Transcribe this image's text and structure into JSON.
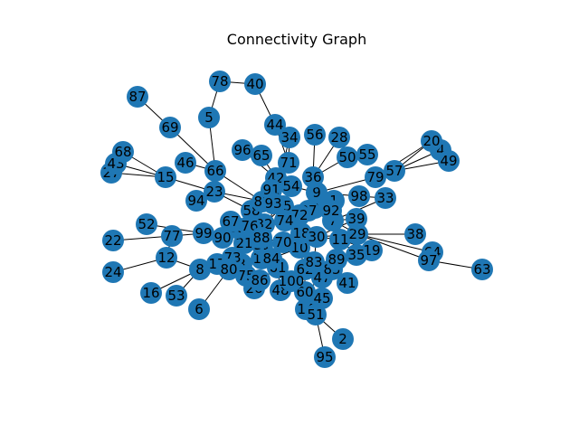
{
  "title": "Connectivity Graph",
  "colors": {
    "node": "#1f77b4",
    "edge": "#000000",
    "label": "#000000",
    "background": "#ffffff"
  },
  "nodes": [
    {
      "id": "0",
      "label": "0"
    },
    {
      "id": "1",
      "label": "1"
    },
    {
      "id": "2",
      "label": "2"
    },
    {
      "id": "3",
      "label": "3"
    },
    {
      "id": "4",
      "label": "4"
    },
    {
      "id": "5",
      "label": "5"
    },
    {
      "id": "6",
      "label": "6"
    },
    {
      "id": "7",
      "label": "7"
    },
    {
      "id": "8",
      "label": "8"
    },
    {
      "id": "9",
      "label": "9"
    },
    {
      "id": "10",
      "label": "10"
    },
    {
      "id": "11",
      "label": "11"
    },
    {
      "id": "12",
      "label": "12"
    },
    {
      "id": "13",
      "label": "13"
    },
    {
      "id": "14",
      "label": "14"
    },
    {
      "id": "15",
      "label": "15"
    },
    {
      "id": "16",
      "label": "16"
    },
    {
      "id": "17",
      "label": "17"
    },
    {
      "id": "18",
      "label": "18"
    },
    {
      "id": "19",
      "label": "19"
    },
    {
      "id": "20",
      "label": "20"
    },
    {
      "id": "21",
      "label": "21"
    },
    {
      "id": "22",
      "label": "22"
    },
    {
      "id": "23",
      "label": "23"
    },
    {
      "id": "24",
      "label": "24"
    },
    {
      "id": "25",
      "label": "25"
    },
    {
      "id": "26",
      "label": "26"
    },
    {
      "id": "27",
      "label": "27"
    },
    {
      "id": "28",
      "label": "28"
    },
    {
      "id": "29",
      "label": "29"
    },
    {
      "id": "30",
      "label": "30"
    },
    {
      "id": "31",
      "label": "31"
    },
    {
      "id": "32",
      "label": "32"
    },
    {
      "id": "33",
      "label": "33"
    },
    {
      "id": "34",
      "label": "34"
    },
    {
      "id": "35",
      "label": "35"
    },
    {
      "id": "36",
      "label": "36"
    },
    {
      "id": "37",
      "label": "37"
    },
    {
      "id": "38",
      "label": "38"
    },
    {
      "id": "39",
      "label": "39"
    },
    {
      "id": "40",
      "label": "40"
    },
    {
      "id": "41",
      "label": "41"
    },
    {
      "id": "42",
      "label": "42"
    },
    {
      "id": "43",
      "label": "43"
    },
    {
      "id": "44",
      "label": "44"
    },
    {
      "id": "45",
      "label": "45"
    },
    {
      "id": "46",
      "label": "46"
    },
    {
      "id": "47",
      "label": "47"
    },
    {
      "id": "48",
      "label": "48"
    },
    {
      "id": "49",
      "label": "49"
    },
    {
      "id": "50",
      "label": "50"
    },
    {
      "id": "51",
      "label": "51"
    },
    {
      "id": "52",
      "label": "52"
    },
    {
      "id": "53",
      "label": "53"
    },
    {
      "id": "54",
      "label": "54"
    },
    {
      "id": "55",
      "label": "55"
    },
    {
      "id": "56",
      "label": "56"
    },
    {
      "id": "57",
      "label": "57"
    },
    {
      "id": "58",
      "label": "58"
    },
    {
      "id": "59",
      "label": "59"
    },
    {
      "id": "60",
      "label": "60"
    },
    {
      "id": "61",
      "label": "61"
    },
    {
      "id": "62",
      "label": "62"
    },
    {
      "id": "63",
      "label": "63"
    },
    {
      "id": "64",
      "label": "64"
    },
    {
      "id": "65",
      "label": "65"
    },
    {
      "id": "66",
      "label": "66"
    },
    {
      "id": "67",
      "label": "67"
    },
    {
      "id": "68",
      "label": "68"
    },
    {
      "id": "69",
      "label": "69"
    },
    {
      "id": "70",
      "label": "70"
    },
    {
      "id": "71",
      "label": "71"
    },
    {
      "id": "72",
      "label": "72"
    },
    {
      "id": "73",
      "label": "73"
    },
    {
      "id": "74",
      "label": "74"
    },
    {
      "id": "75",
      "label": "75"
    },
    {
      "id": "76",
      "label": "76"
    },
    {
      "id": "77",
      "label": "77"
    },
    {
      "id": "78",
      "label": "78"
    },
    {
      "id": "79",
      "label": "79"
    },
    {
      "id": "80",
      "label": "80"
    },
    {
      "id": "81",
      "label": "81"
    },
    {
      "id": "82",
      "label": "82"
    },
    {
      "id": "83",
      "label": "83"
    },
    {
      "id": "84",
      "label": "84"
    },
    {
      "id": "85",
      "label": "85"
    },
    {
      "id": "86",
      "label": "86"
    },
    {
      "id": "87",
      "label": "87"
    },
    {
      "id": "88",
      "label": "88"
    },
    {
      "id": "89",
      "label": "89"
    },
    {
      "id": "90",
      "label": "90"
    },
    {
      "id": "91",
      "label": "91"
    },
    {
      "id": "92",
      "label": "92"
    },
    {
      "id": "93",
      "label": "93"
    },
    {
      "id": "94",
      "label": "94"
    },
    {
      "id": "95",
      "label": "95"
    },
    {
      "id": "96",
      "label": "96"
    },
    {
      "id": "97",
      "label": "97"
    },
    {
      "id": "98",
      "label": "98"
    },
    {
      "id": "99",
      "label": "99"
    },
    {
      "id": "100",
      "label": "100"
    }
  ],
  "edges": [
    [
      "87",
      "69"
    ],
    [
      "69",
      "66"
    ],
    [
      "78",
      "40"
    ],
    [
      "78",
      "5"
    ],
    [
      "5",
      "66"
    ],
    [
      "40",
      "44"
    ],
    [
      "44",
      "34"
    ],
    [
      "44",
      "71"
    ],
    [
      "68",
      "15"
    ],
    [
      "43",
      "15"
    ],
    [
      "27",
      "15"
    ],
    [
      "15",
      "23"
    ],
    [
      "46",
      "66"
    ],
    [
      "66",
      "23"
    ],
    [
      "66",
      "82"
    ],
    [
      "94",
      "23"
    ],
    [
      "23",
      "58"
    ],
    [
      "96",
      "42"
    ],
    [
      "65",
      "42"
    ],
    [
      "71",
      "42"
    ],
    [
      "34",
      "71"
    ],
    [
      "56",
      "36"
    ],
    [
      "28",
      "36"
    ],
    [
      "50",
      "36"
    ],
    [
      "55",
      "50"
    ],
    [
      "42",
      "54"
    ],
    [
      "54",
      "9"
    ],
    [
      "36",
      "9"
    ],
    [
      "79",
      "9"
    ],
    [
      "57",
      "79"
    ],
    [
      "20",
      "57"
    ],
    [
      "4",
      "57"
    ],
    [
      "49",
      "57"
    ],
    [
      "20",
      "79"
    ],
    [
      "98",
      "9"
    ],
    [
      "33",
      "98"
    ],
    [
      "1",
      "7"
    ],
    [
      "9",
      "1"
    ],
    [
      "39",
      "7"
    ],
    [
      "38",
      "29"
    ],
    [
      "64",
      "29"
    ],
    [
      "97",
      "29"
    ],
    [
      "63",
      "97"
    ],
    [
      "64",
      "97"
    ],
    [
      "19",
      "11"
    ],
    [
      "29",
      "11"
    ],
    [
      "35",
      "11"
    ],
    [
      "52",
      "99"
    ],
    [
      "22",
      "77"
    ],
    [
      "77",
      "99"
    ],
    [
      "77",
      "12"
    ],
    [
      "99",
      "90"
    ],
    [
      "24",
      "12"
    ],
    [
      "12",
      "8"
    ],
    [
      "16",
      "8"
    ],
    [
      "53",
      "8"
    ],
    [
      "8",
      "17"
    ],
    [
      "6",
      "80"
    ],
    [
      "17",
      "21"
    ],
    [
      "80",
      "73"
    ],
    [
      "73",
      "75"
    ],
    [
      "75",
      "26"
    ],
    [
      "86",
      "3"
    ],
    [
      "48",
      "61"
    ],
    [
      "100",
      "61"
    ],
    [
      "60",
      "47"
    ],
    [
      "14",
      "45"
    ],
    [
      "45",
      "51"
    ],
    [
      "51",
      "2"
    ],
    [
      "51",
      "95"
    ],
    [
      "41",
      "85"
    ],
    [
      "83",
      "85"
    ],
    [
      "89",
      "85"
    ],
    [
      "47",
      "62"
    ],
    [
      "62",
      "10"
    ],
    [
      "84",
      "10"
    ],
    [
      "13",
      "70"
    ],
    [
      "31",
      "70"
    ],
    [
      "88",
      "70"
    ],
    [
      "70",
      "18"
    ],
    [
      "18",
      "30"
    ],
    [
      "30",
      "11"
    ],
    [
      "21",
      "88"
    ],
    [
      "90",
      "88"
    ],
    [
      "67",
      "32"
    ],
    [
      "59",
      "76"
    ],
    [
      "76",
      "32"
    ],
    [
      "32",
      "25"
    ],
    [
      "25",
      "74"
    ],
    [
      "74",
      "72"
    ],
    [
      "72",
      "37"
    ],
    [
      "37",
      "92"
    ],
    [
      "92",
      "1"
    ],
    [
      "82",
      "93"
    ],
    [
      "93",
      "91"
    ],
    [
      "91",
      "42"
    ],
    [
      "58",
      "25"
    ],
    [
      "18",
      "74"
    ],
    [
      "10",
      "83"
    ],
    [
      "30",
      "39"
    ],
    [
      "0",
      "36"
    ],
    [
      "92",
      "7"
    ],
    [
      "72",
      "18"
    ],
    [
      "37",
      "9"
    ],
    [
      "29",
      "7"
    ],
    [
      "3",
      "13"
    ],
    [
      "13",
      "34"
    ],
    [
      "61",
      "84"
    ],
    [
      "84",
      "13"
    ],
    [
      "83",
      "30"
    ],
    [
      "10",
      "30"
    ],
    [
      "70",
      "10"
    ],
    [
      "26",
      "3"
    ],
    [
      "86",
      "61"
    ],
    [
      "100",
      "62"
    ],
    [
      "47",
      "89"
    ],
    [
      "60",
      "62"
    ],
    [
      "45",
      "60"
    ],
    [
      "14",
      "60"
    ],
    [
      "35",
      "89"
    ],
    [
      "19",
      "35"
    ],
    [
      "33",
      "7"
    ],
    [
      "30",
      "29"
    ],
    [
      "36",
      "92"
    ],
    [
      "23",
      "93"
    ]
  ]
}
